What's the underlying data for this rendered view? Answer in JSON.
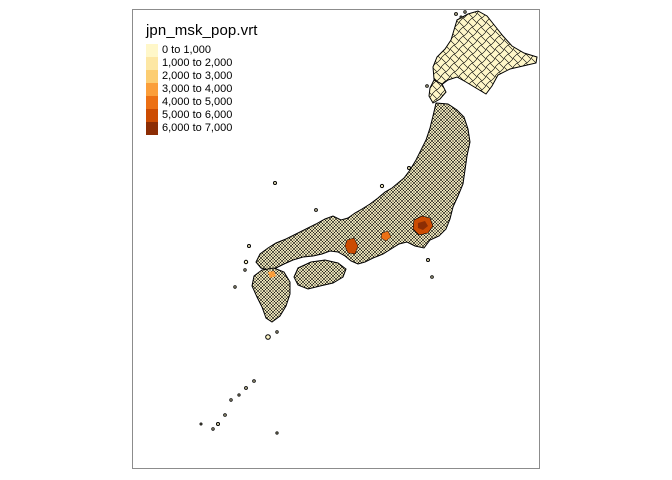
{
  "map": {
    "legend_title": "jpn_msk_pop.vrt",
    "legend_items": [
      {
        "label": "0 to 1,000",
        "color": "#fff7c9"
      },
      {
        "label": "1,000 to 2,000",
        "color": "#fde7a4"
      },
      {
        "label": "2,000 to 3,000",
        "color": "#fccd72"
      },
      {
        "label": "3,000 to 4,000",
        "color": "#fb9e3a"
      },
      {
        "label": "4,000 to 5,000",
        "color": "#ec7014"
      },
      {
        "label": "5,000 to 6,000",
        "color": "#cc4c02"
      },
      {
        "label": "6,000 to 7,000",
        "color": "#8c2d04"
      }
    ],
    "border_color": "#000000",
    "frame_color": "#8c8c8c"
  }
}
